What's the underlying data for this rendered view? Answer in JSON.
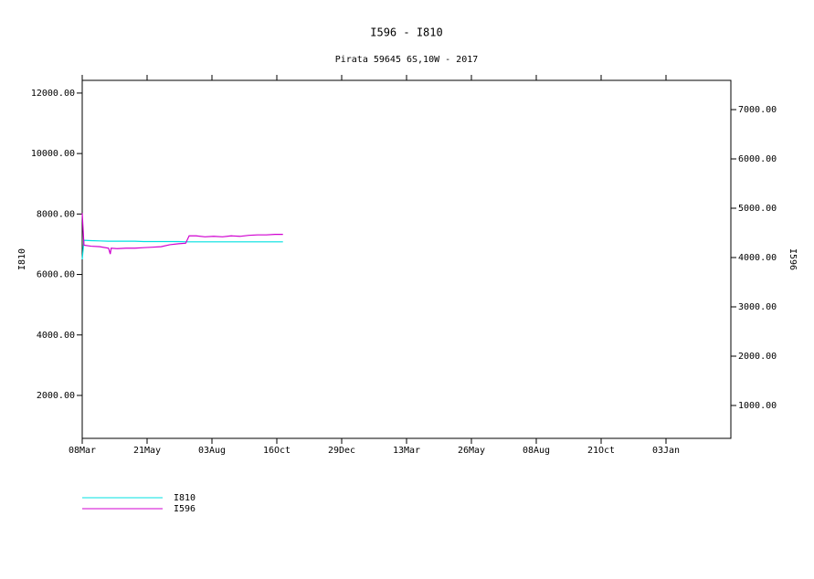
{
  "chart_data": {
    "type": "line",
    "title": "I596 - I810",
    "subtitle": "Pirata 59645 6S,10W - 2017",
    "y_label": "I810",
    "y2_label": "I596",
    "x": [
      0,
      2,
      10,
      20,
      30,
      32,
      33,
      40,
      50,
      60,
      70,
      80,
      90,
      100,
      110,
      118,
      122,
      130,
      140,
      150,
      160,
      170,
      180,
      190,
      200,
      210,
      220,
      229
    ],
    "xlim": [
      0,
      740
    ],
    "xticks": [
      {
        "value": 0,
        "label": "08Mar"
      },
      {
        "value": 74,
        "label": "21May"
      },
      {
        "value": 148,
        "label": "03Aug"
      },
      {
        "value": 222,
        "label": "16Oct"
      },
      {
        "value": 296,
        "label": "29Dec"
      },
      {
        "value": 370,
        "label": "13Mar"
      },
      {
        "value": 444,
        "label": "26May"
      },
      {
        "value": 518,
        "label": "08Aug"
      },
      {
        "value": 592,
        "label": "21Oct"
      },
      {
        "value": 666,
        "label": "03Jan"
      }
    ],
    "ylim": [
      580,
      12420
    ],
    "yticks": [
      {
        "value": 2000,
        "label": "2000.00"
      },
      {
        "value": 4000,
        "label": "4000.00"
      },
      {
        "value": 6000,
        "label": "6000.00"
      },
      {
        "value": 8000,
        "label": "8000.00"
      },
      {
        "value": 10000,
        "label": "10000.00"
      },
      {
        "value": 12000,
        "label": "12000.00"
      }
    ],
    "y2lim": [
      333,
      7593
    ],
    "y2ticks": [
      {
        "value": 1000,
        "label": "1000.00"
      },
      {
        "value": 2000,
        "label": "2000.00"
      },
      {
        "value": 3000,
        "label": "3000.00"
      },
      {
        "value": 4000,
        "label": "4000.00"
      },
      {
        "value": 5000,
        "label": "5000.00"
      },
      {
        "value": 6000,
        "label": "6000.00"
      },
      {
        "value": 7000,
        "label": "7000.00"
      }
    ],
    "series": [
      {
        "name": "I810",
        "color": "#00e0e0",
        "values": [
          6500,
          7130,
          7120,
          7110,
          7100,
          7100,
          7100,
          7100,
          7100,
          7100,
          7090,
          7090,
          7090,
          7090,
          7090,
          7080,
          7080,
          7080,
          7080,
          7080,
          7080,
          7080,
          7080,
          7080,
          7080,
          7080,
          7080,
          7080
        ]
      },
      {
        "name": "I596",
        "color": "#d000d0",
        "axis": "y2",
        "values": [
          4900,
          4250,
          4230,
          4220,
          4190,
          4070,
          4190,
          4180,
          4190,
          4190,
          4200,
          4210,
          4220,
          4260,
          4280,
          4290,
          4440,
          4440,
          4420,
          4430,
          4420,
          4440,
          4430,
          4450,
          4460,
          4460,
          4470,
          4470
        ]
      }
    ]
  }
}
